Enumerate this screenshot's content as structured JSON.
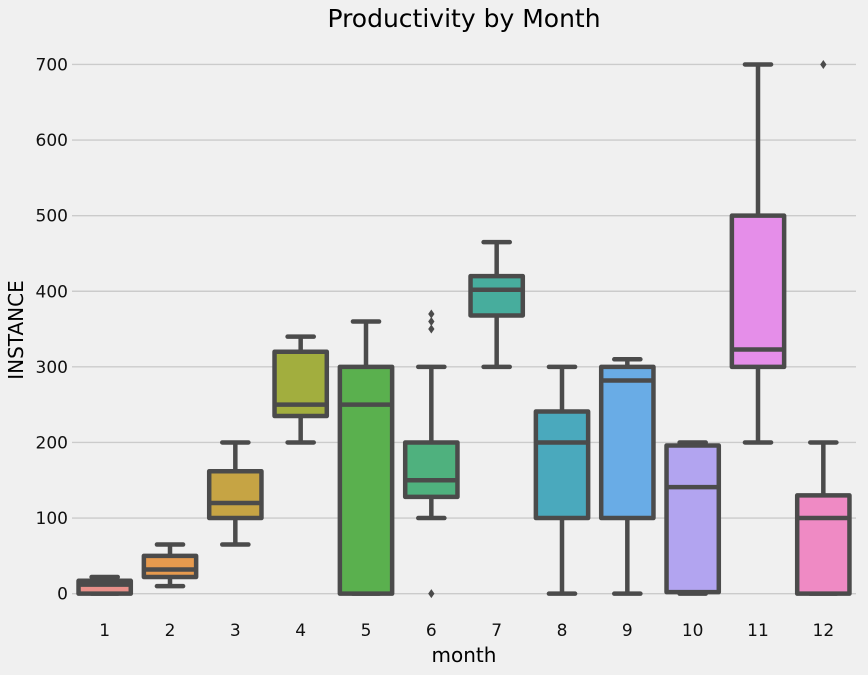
{
  "chart_data": {
    "type": "box",
    "title": "Productivity by Month",
    "xlabel": "month",
    "ylabel": "INSTANCE",
    "ylim": [
      -15,
      735
    ],
    "yticks": [
      0,
      100,
      200,
      300,
      400,
      500,
      600,
      700
    ],
    "grid": "horizontal",
    "legend": "none",
    "categories": [
      "1",
      "2",
      "3",
      "4",
      "5",
      "6",
      "7",
      "8",
      "9",
      "10",
      "11",
      "12"
    ],
    "box_edge_color": "#4b4b4b",
    "series": [
      {
        "category": "1",
        "color": "#e8908a",
        "whisker_low": 0,
        "q1": 0,
        "median": 12,
        "q3": 17,
        "whisker_high": 22,
        "outliers": []
      },
      {
        "category": "2",
        "color": "#e69a4e",
        "whisker_low": 10,
        "q1": 22,
        "median": 32,
        "q3": 50,
        "whisker_high": 65,
        "outliers": []
      },
      {
        "category": "3",
        "color": "#c6a444",
        "whisker_low": 65,
        "q1": 100,
        "median": 120,
        "q3": 162,
        "whisker_high": 200,
        "outliers": []
      },
      {
        "category": "4",
        "color": "#a2ae3e",
        "whisker_low": 200,
        "q1": 235,
        "median": 250,
        "q3": 320,
        "whisker_high": 340,
        "outliers": []
      },
      {
        "category": "5",
        "color": "#5ab04e",
        "whisker_low": 0,
        "q1": 0,
        "median": 250,
        "q3": 300,
        "whisker_high": 360,
        "outliers": []
      },
      {
        "category": "6",
        "color": "#4fb17e",
        "whisker_low": 100,
        "q1": 128,
        "median": 150,
        "q3": 200,
        "whisker_high": 300,
        "outliers": [
          370,
          360,
          350,
          0
        ]
      },
      {
        "category": "7",
        "color": "#47ad9d",
        "whisker_low": 300,
        "q1": 368,
        "median": 402,
        "q3": 420,
        "whisker_high": 465,
        "outliers": []
      },
      {
        "category": "8",
        "color": "#4aa9bd",
        "whisker_low": 0,
        "q1": 100,
        "median": 200,
        "q3": 241,
        "whisker_high": 300,
        "outliers": []
      },
      {
        "category": "9",
        "color": "#69ace6",
        "whisker_low": 0,
        "q1": 100,
        "median": 282,
        "q3": 300,
        "whisker_high": 310,
        "outliers": []
      },
      {
        "category": "10",
        "color": "#b2a4f0",
        "whisker_low": 0,
        "q1": 2,
        "median": 141,
        "q3": 196,
        "whisker_high": 200,
        "outliers": []
      },
      {
        "category": "11",
        "color": "#e58ee9",
        "whisker_low": 200,
        "q1": 300,
        "median": 323,
        "q3": 500,
        "whisker_high": 700,
        "outliers": []
      },
      {
        "category": "12",
        "color": "#ef8ac4",
        "whisker_low": 0,
        "q1": 0,
        "median": 100,
        "q3": 130,
        "whisker_high": 200,
        "outliers": [
          700
        ]
      }
    ]
  }
}
